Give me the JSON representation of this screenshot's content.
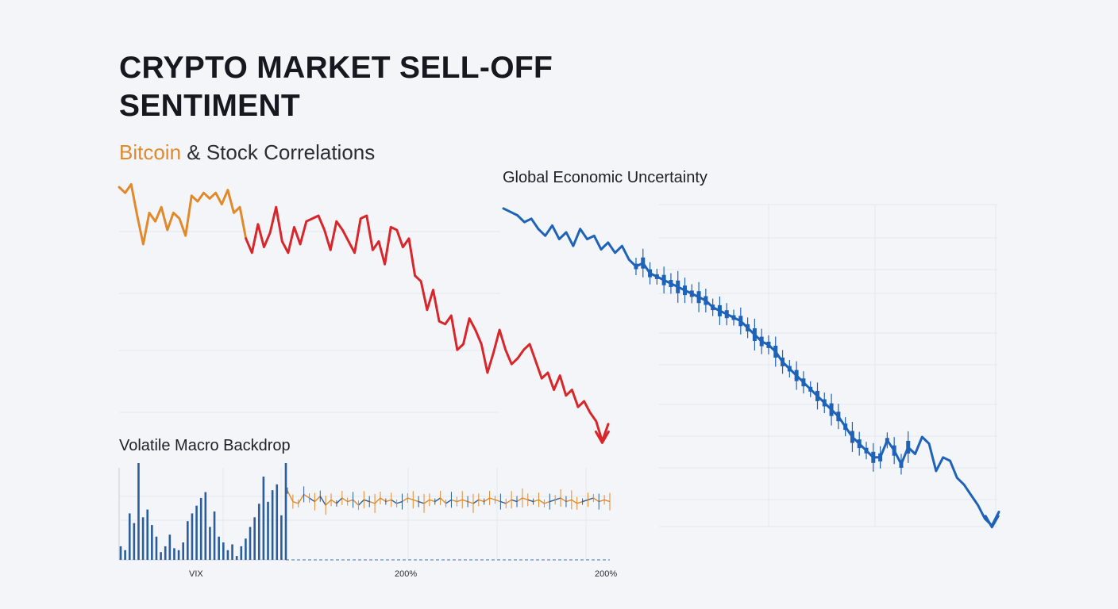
{
  "header": {
    "title": "CRYPTO MARKET SELL-OFF SENTIMENT",
    "subtitle_accent": "Bitcoin",
    "subtitle_rest": " & Stock Correlations"
  },
  "colors": {
    "bitcoin_pre": "#e08a2c",
    "bitcoin_crash": "#d8262a",
    "global": "#1f63b8",
    "vix_bars": "#2a5d9a",
    "volume_orange": "#e08a2c",
    "background": "#f3f5f9",
    "grid": "#e3e6ec"
  },
  "chart_data": [
    {
      "type": "line",
      "name": "bitcoin",
      "title": "Bitcoin & Stock Correlations",
      "crash_start_index": 21,
      "ylim": [
        0,
        100
      ],
      "values": [
        95,
        93,
        96,
        85,
        75,
        86,
        83,
        88,
        80,
        86,
        84,
        78,
        92,
        90,
        93,
        91,
        93,
        89,
        94,
        86,
        88,
        77,
        72,
        82,
        74,
        79,
        88,
        76,
        72,
        81,
        75,
        83,
        84,
        85,
        80,
        73,
        83,
        80,
        76,
        72,
        84,
        85,
        73,
        76,
        68,
        81,
        80,
        74,
        77,
        64,
        62,
        52,
        59,
        48,
        47,
        50,
        38,
        40,
        49,
        45,
        40,
        30,
        37,
        45,
        38,
        33,
        35,
        38,
        40,
        34,
        28,
        30,
        24,
        29,
        22,
        24,
        18,
        20,
        16,
        13,
        6,
        12
      ]
    },
    {
      "type": "line",
      "name": "global_economic_uncertainty",
      "title": "Global Economic Uncertainty",
      "ylim": [
        0,
        100
      ],
      "values": [
        97,
        96,
        95,
        93,
        94,
        91,
        89,
        92,
        88,
        90,
        86,
        91,
        88,
        89,
        85,
        87,
        84,
        86,
        82,
        80,
        81,
        78,
        77,
        76,
        75,
        74,
        73,
        72,
        71,
        70,
        68,
        67,
        66,
        65,
        64,
        62,
        60,
        58,
        57,
        55,
        52,
        50,
        48,
        46,
        44,
        42,
        40,
        38,
        36,
        33,
        30,
        28,
        26,
        24,
        24,
        29,
        26,
        22,
        27,
        25,
        30,
        28,
        20,
        24,
        23,
        18,
        16,
        13,
        10,
        6,
        4,
        8
      ]
    },
    {
      "type": "bar",
      "name": "vix",
      "title": "Volatile Macro Backdrop",
      "xlabel": "VIX",
      "ylim": [
        0,
        100
      ],
      "values": [
        14,
        10,
        48,
        38,
        100,
        44,
        52,
        36,
        24,
        8,
        14,
        26,
        12,
        10,
        18,
        40,
        48,
        56,
        64,
        70,
        34,
        50,
        24,
        18,
        10,
        16,
        4,
        14,
        22,
        34,
        44,
        58,
        86,
        60,
        72,
        78,
        46,
        100
      ]
    },
    {
      "type": "line",
      "name": "macro_volatility",
      "ticks": [
        "200%",
        "200%"
      ],
      "values": [
        60,
        54,
        53,
        58,
        56,
        54,
        57,
        52,
        55,
        53,
        56,
        54,
        55,
        52,
        55,
        54,
        53,
        56,
        54,
        55,
        53,
        54,
        56,
        55,
        54,
        53,
        55,
        54,
        56,
        53,
        55,
        54,
        55,
        54,
        53,
        55,
        54,
        56,
        55,
        54,
        53,
        55,
        54,
        56,
        55,
        54,
        55,
        53,
        54,
        55,
        56,
        54,
        55,
        53,
        54,
        55,
        56,
        54,
        55,
        54
      ]
    }
  ]
}
